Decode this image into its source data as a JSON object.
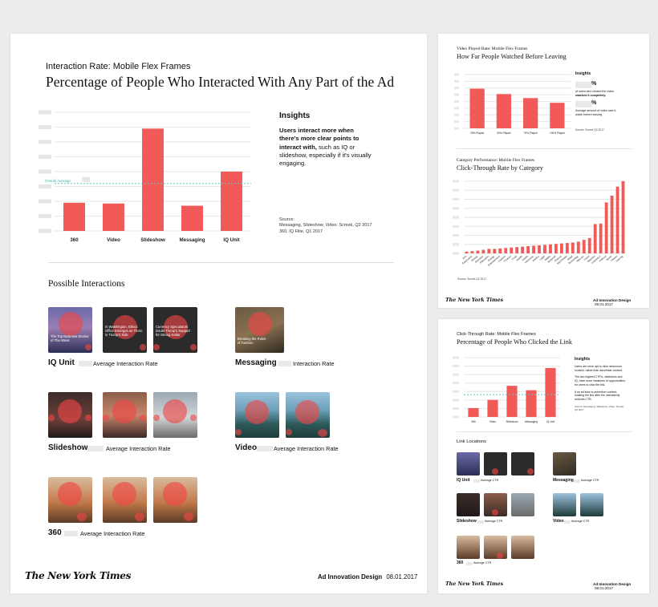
{
  "main": {
    "kicker": "Interaction Rate: Mobile Flex Frames",
    "title": "Percentage of People Who Interacted With Any Part of the Ad",
    "overall_average_label": "Overall Average",
    "insights_heading": "Insights",
    "insights_bold": "Users interact more when there's more clear points to interact with,",
    "insights_rest": " such as IQ or slideshow, especially if it's visually engaging.",
    "source_label": "Source:",
    "source_text": "Messaging, Slideshow, Video: Scmek, Q2 2017",
    "source_text2": "360, IQ Flite, Q1 2017",
    "possible_interactions": "Possible Interactions",
    "formats": [
      {
        "name": "IQ Unit",
        "caption": "Average Interaction Rate"
      },
      {
        "name": "Messaging",
        "caption": "Interaction Rate"
      },
      {
        "name": "Slideshow",
        "caption": "Average Interaction Rate"
      },
      {
        "name": "Video",
        "caption": "Average Interaction Rate"
      },
      {
        "name": "360",
        "caption": "Average Interaction Rate"
      }
    ],
    "iq_thumb_texts": [
      "The Top Business Stories of The Week",
      "In Washington, Ethics Office Emerges as Thorn in Trump's Side",
      "Currency Speculators Doubt Trump's Support for Strong Dollar"
    ],
    "messaging_thumb_text": "Breaking the Rules of Fashion",
    "brand": "The New York Times",
    "footer_bold": "Ad Innovation Design",
    "footer_date": "08.01.2017"
  },
  "video_card": {
    "kicker": "Video Played Rate: Mobile Flex Frames",
    "title": "How Far People Watched Before Leaving",
    "insights_heading": "Insights",
    "pct1": "%",
    "pct1_text_plain": "of users who clicked the video ",
    "pct1_text_bold": "watched it completely.",
    "pct2": "%",
    "pct2_text": "Average amount of video user's watch before leaving.",
    "source": "Source: Scmek Q2 2017"
  },
  "ctr_category": {
    "kicker": "Category Performance: Mobile Flex Frames",
    "title": "Click-Through Rate by Category",
    "source": "Source: Scmek Q2 2017",
    "brand": "The New York Times",
    "footer_bold": "Ad Innovation Design",
    "footer_date": "08.01.2017"
  },
  "ctr_card": {
    "kicker": "Click-Through Rate: Mobile Flex Frames",
    "title": "Percentage of People Who Clicked the Link",
    "insights_heading": "Insights",
    "insight_p1": "Users are more apt to click newsroom content, rather than advertiser content.",
    "insight_p2": "The two highest CTR's, slideshow and IQ, have more instances of opportunities for users to click the link.",
    "insight_p3": "If an ad links to advertiser content, locating the link after the interactivity reduces CTR.",
    "source": "Source: Messaging, Slideshow, Video: Scmek, Q2 2017",
    "link_locations": "Link Locations",
    "formats": [
      {
        "name": "IQ Unit",
        "caption": "Average CTR"
      },
      {
        "name": "Messaging",
        "caption": "Average CTR"
      },
      {
        "name": "Slideshow",
        "caption": "Average CTR"
      },
      {
        "name": "Video",
        "caption": "Average CTR"
      },
      {
        "name": "360",
        "caption": "Average CTR"
      }
    ],
    "brand": "The New York Times",
    "footer_bold": "Ad Innovation Design",
    "footer_date": "08.01.2017"
  },
  "chart_data": [
    {
      "id": "interaction",
      "type": "bar",
      "title": "Percentage of People Who Interacted With Any Part of the Ad",
      "categories": [
        "360",
        "Video",
        "Slideshow",
        "Messaging",
        "IQ Unit"
      ],
      "values": [
        19,
        18.5,
        69,
        17,
        40
      ],
      "overall_average": 32,
      "ylim": [
        0,
        80
      ],
      "grid": true,
      "color": "#f25a5a"
    },
    {
      "id": "video_played",
      "type": "bar",
      "title": "How Far People Watched Before Leaving",
      "categories": [
        "25% Played",
        "50% Played",
        "75% Played",
        "100% Played"
      ],
      "values": [
        59,
        51,
        45,
        38
      ],
      "ylim": [
        0,
        80
      ],
      "grid": true,
      "color": "#f25a5a"
    },
    {
      "id": "ctr_category",
      "type": "bar",
      "title": "Click-Through Rate by Category",
      "categories": [
        "Arts",
        "Automotive",
        "Beauty",
        "Business",
        "Education",
        "Energy",
        "Entertainment",
        "Fashion",
        "Finance",
        "Food",
        "Health",
        "Hotels",
        "Insurance",
        "Jewelry",
        "Legal",
        "Media",
        "Nonprofit",
        "Pharma",
        "Real Estate",
        "Retail",
        "Technology",
        "Telecom",
        "Travel",
        "Watches",
        "Cosmetics",
        "Political",
        "Spirits",
        "Fitness",
        "Gaming"
      ],
      "values": [
        0.4,
        0.5,
        0.6,
        0.8,
        1,
        1,
        1.1,
        1.2,
        1.3,
        1.4,
        1.5,
        1.6,
        1.7,
        1.8,
        1.9,
        2,
        2.1,
        2.2,
        2.3,
        2.4,
        2.6,
        3,
        3.4,
        6.5,
        6.6,
        11.3,
        12.8,
        14.8,
        16
      ],
      "ylim": [
        0,
        16
      ],
      "grid": true,
      "color": "#f25a5a"
    },
    {
      "id": "ctr",
      "type": "bar",
      "title": "Percentage of People Who Clicked the Link",
      "categories": [
        "360",
        "Video",
        "Slideshow",
        "Messaging",
        "IQ Unit"
      ],
      "values": [
        12,
        23,
        42,
        36,
        66
      ],
      "overall_average": 30,
      "ylim": [
        0,
        80
      ],
      "grid": true,
      "color": "#f25a5a"
    }
  ]
}
